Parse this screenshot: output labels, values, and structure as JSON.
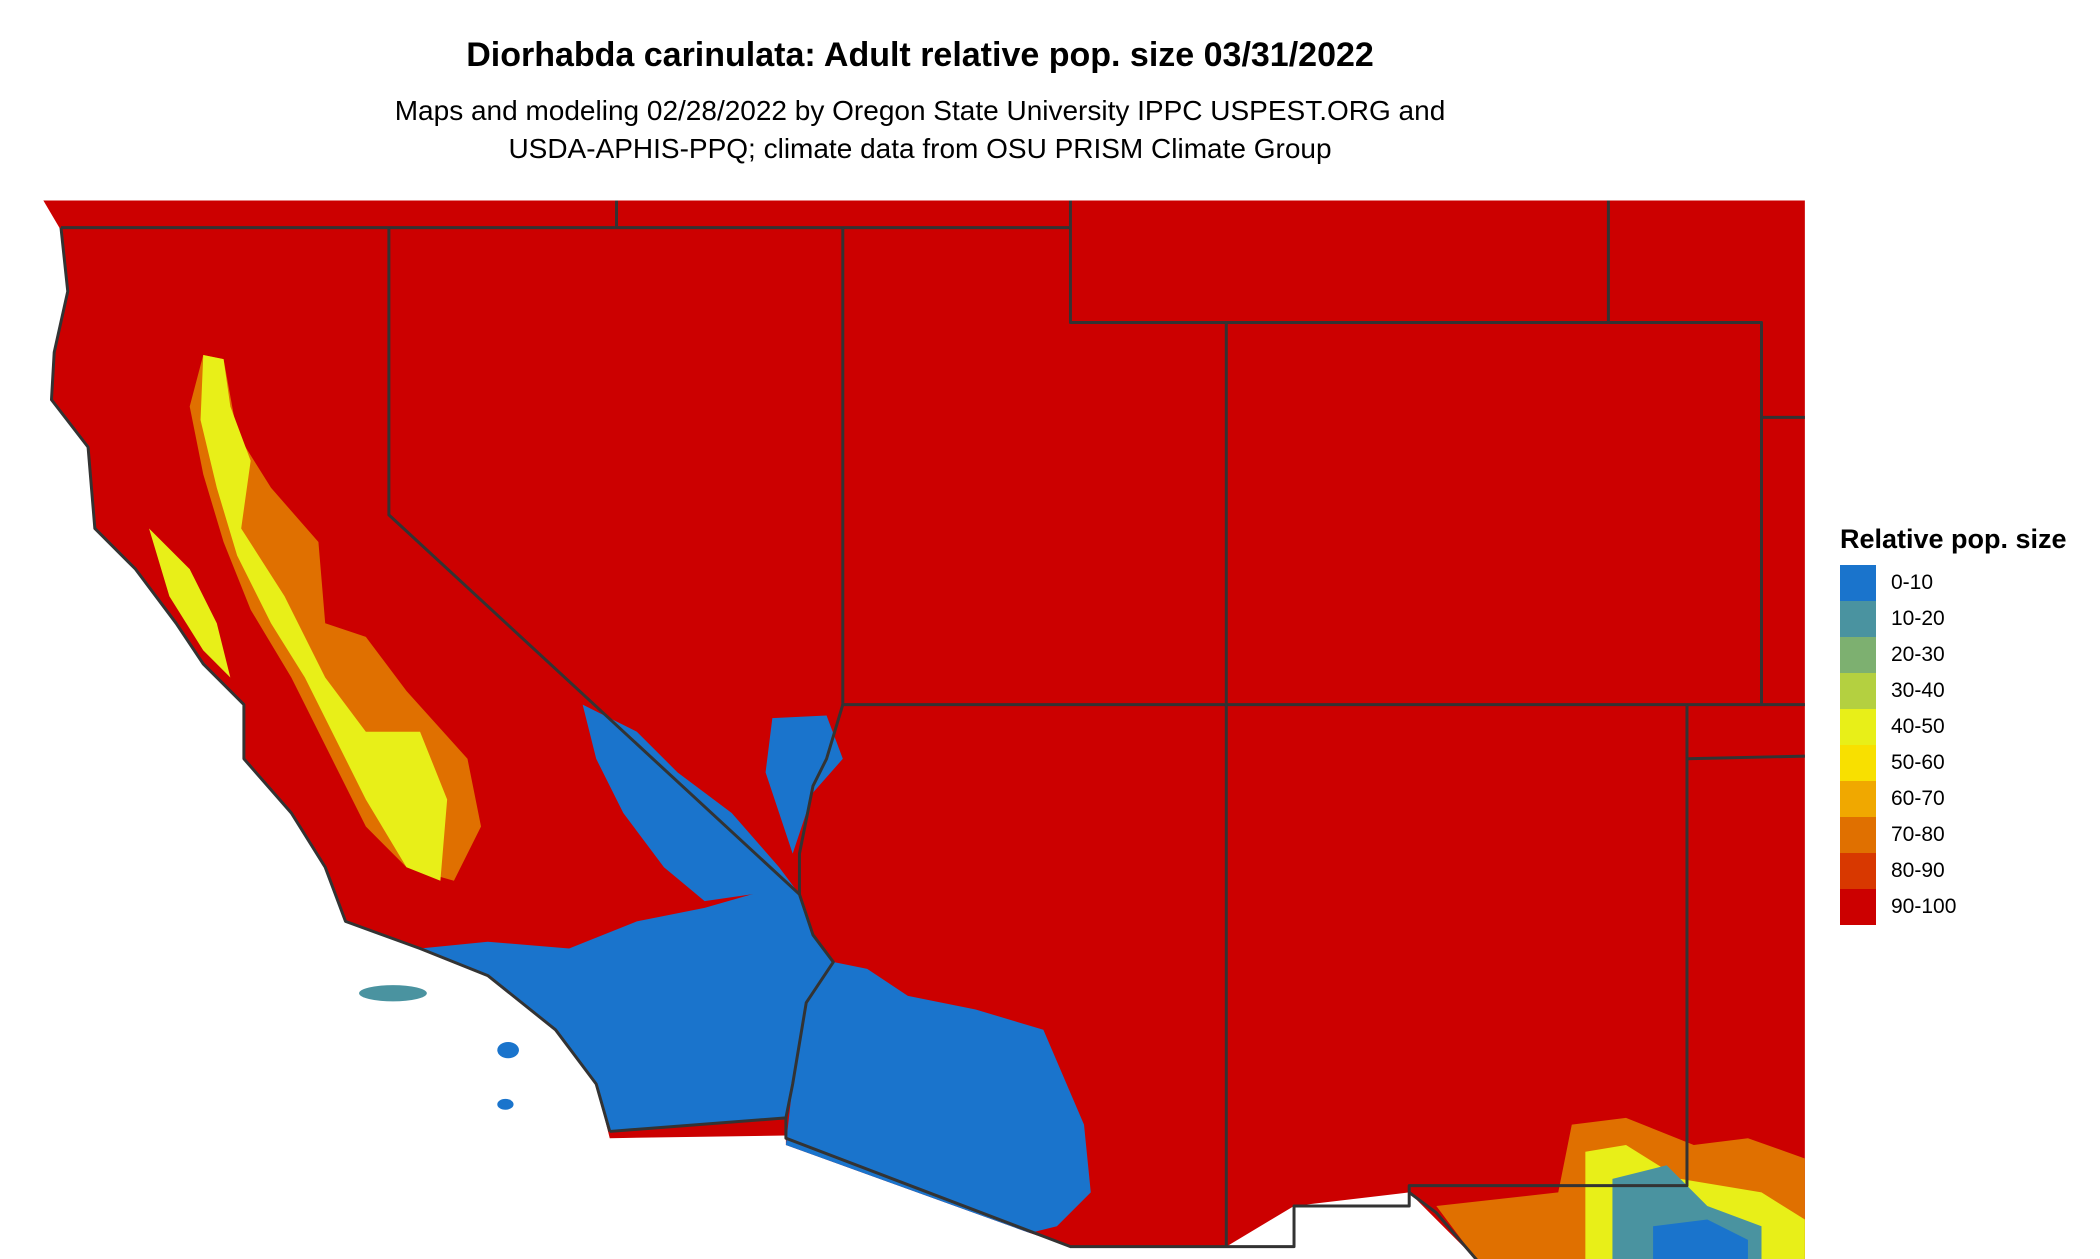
{
  "title": "Diorhabda carinulata: Adult relative pop. size 03/31/2022",
  "subtitle_lines": [
    "Maps and modeling 02/28/2022 by Oregon State University IPPC USPEST.ORG and",
    "USDA-APHIS-PPQ; climate data from OSU PRISM Climate Group"
  ],
  "legend": {
    "title": "Relative pop. size",
    "items": [
      {
        "label": "0-10",
        "color": "#1a74cc"
      },
      {
        "label": "10-20",
        "color": "#4a93a0"
      },
      {
        "label": "20-30",
        "color": "#7db070"
      },
      {
        "label": "30-40",
        "color": "#b4d040"
      },
      {
        "label": "40-50",
        "color": "#e8ef18"
      },
      {
        "label": "50-60",
        "color": "#f8e000"
      },
      {
        "label": "60-70",
        "color": "#f0a800"
      },
      {
        "label": "70-80",
        "color": "#e07000"
      },
      {
        "label": "80-90",
        "color": "#d83800"
      },
      {
        "label": "90-100",
        "color": "#cc0000"
      }
    ]
  },
  "colors": {
    "state_border": "#333333",
    "background": "#ffffff"
  }
}
